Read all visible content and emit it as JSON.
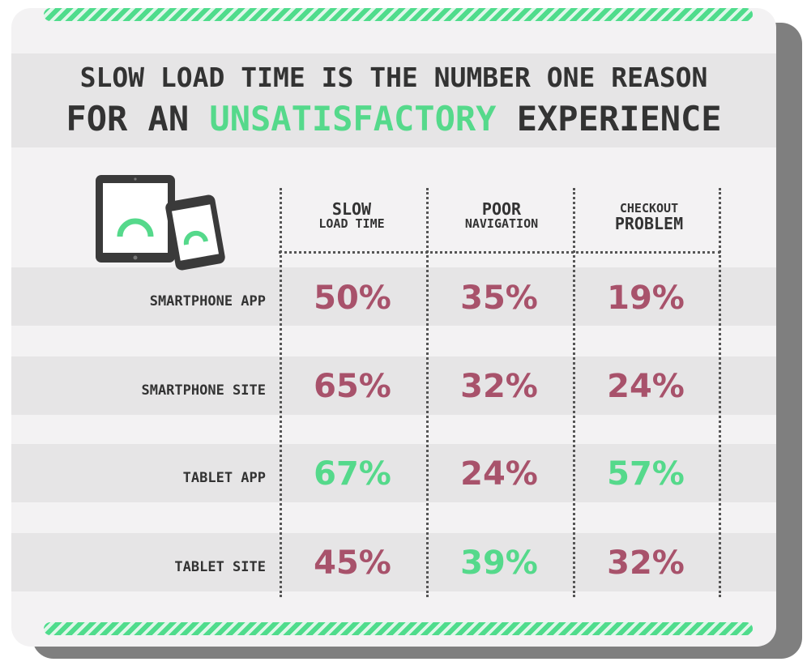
{
  "title": {
    "line1": "SLOW LOAD TIME IS THE NUMBER ONE REASON",
    "line2_pre": "FOR AN ",
    "line2_accent": "UNSATISFACTORY",
    "line2_post": " EXPERIENCE"
  },
  "colors": {
    "accent": "#55d98b",
    "value_default": "#a8526b",
    "value_highlight": "#55d98b",
    "text_dark": "#333333"
  },
  "icons": {
    "devices": "tablet-and-phone-icon"
  },
  "columns": [
    {
      "line1": "SLOW",
      "line2": "LOAD TIME"
    },
    {
      "line1": "POOR",
      "line2": "NAVIGATION"
    },
    {
      "line1": "CHECKOUT",
      "line2": "PROBLEM"
    }
  ],
  "rows": [
    {
      "label": "SMARTPHONE APP",
      "values": [
        "50%",
        "35%",
        "19%"
      ],
      "highlight": [
        false,
        false,
        false
      ]
    },
    {
      "label": "SMARTPHONE SITE",
      "values": [
        "65%",
        "32%",
        "24%"
      ],
      "highlight": [
        false,
        false,
        false
      ]
    },
    {
      "label": "TABLET APP",
      "values": [
        "67%",
        "24%",
        "57%"
      ],
      "highlight": [
        true,
        false,
        true
      ]
    },
    {
      "label": "TABLET SITE",
      "values": [
        "45%",
        "39%",
        "32%"
      ],
      "highlight": [
        false,
        true,
        false
      ]
    }
  ]
}
